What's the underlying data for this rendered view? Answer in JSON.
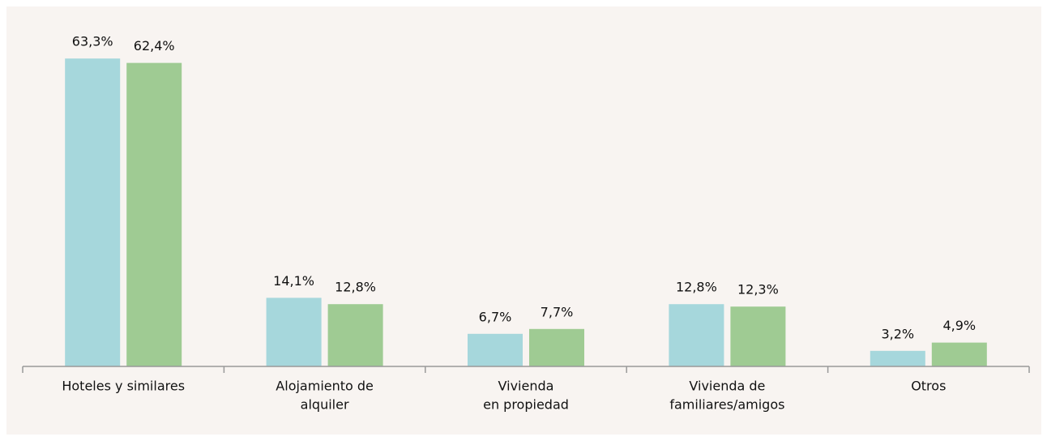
{
  "chart_data": {
    "type": "bar",
    "categories": [
      [
        "Hoteles y similares"
      ],
      [
        "Alojamiento de",
        "alquiler"
      ],
      [
        "Vivienda",
        "en propiedad"
      ],
      [
        "Vivienda de",
        "familiares/amigos"
      ],
      [
        "Otros"
      ]
    ],
    "series": [
      {
        "color": "#a6d7dc",
        "values": [
          63.3,
          14.1,
          6.7,
          12.8,
          3.2
        ],
        "value_labels": [
          "63,3%",
          "14,1%",
          "6,7%",
          "12,8%",
          "3,2%"
        ]
      },
      {
        "color": "#9fcb93",
        "values": [
          62.4,
          12.8,
          7.7,
          12.3,
          4.9
        ],
        "value_labels": [
          "62,4%",
          "12,8%",
          "7,7%",
          "12,3%",
          "4,9%"
        ]
      }
    ],
    "ylim": [
      0,
      70
    ]
  }
}
